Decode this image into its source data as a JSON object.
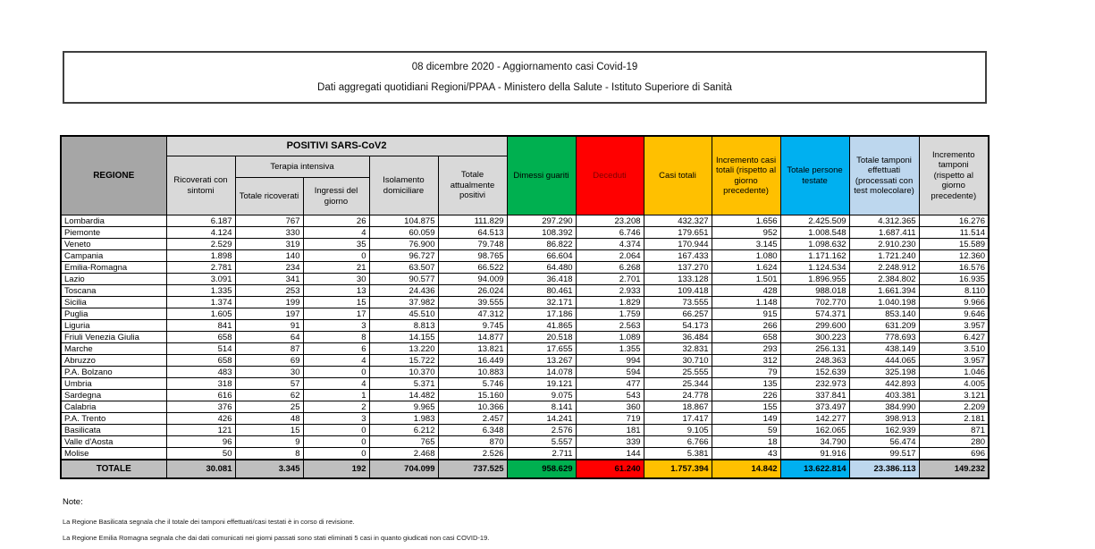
{
  "page": {
    "title_line1": "08 dicembre 2020 - Aggiornamento casi Covid-19",
    "title_line2": "Dati aggregati quotidiani Regioni/PPAA - Ministero della Salute - Istituto Superiore di Sanità"
  },
  "colors": {
    "dimessi_green": "#00b050",
    "deceduti_red": "#ff0000",
    "deceduti_text": "#7f0000",
    "casi_yellow": "#ffc000",
    "testate_cyan": "#00b0f0",
    "tamponi_light_blue": "#bdd7ee",
    "header_light_gray": "#d9d9d9",
    "regione_gray": "#a6a6a6",
    "totale_row_gray": "#bfbfbf"
  },
  "table": {
    "headers": {
      "regione": "REGIONE",
      "positivi_group": "POSITIVI SARS-CoV2",
      "terapia_group": "Terapia intensiva",
      "ricoverati": "Ricoverati con sintomi",
      "totale_ricoverati": "Totale ricoverati",
      "ingressi": "Ingressi del giorno",
      "isolamento": "Isolamento domiciliare",
      "attualmente_positivi": "Totale attualmente positivi",
      "dimessi": "Dimessi guariti",
      "deceduti": "Deceduti",
      "casi_totali": "Casi totali",
      "incremento_casi": "Incremento casi totali (rispetto al giorno precedente)",
      "persone_testate": "Totale persone testate",
      "tamponi": "Totale tamponi effettuati (processati con test molecolare)",
      "incremento_tamponi": "Incremento tamponi (rispetto al giorno precedente)"
    },
    "rows": [
      {
        "region": "Lombardia",
        "values": [
          "6.187",
          "767",
          "26",
          "104.875",
          "111.829",
          "297.290",
          "23.208",
          "432.327",
          "1.656",
          "2.425.509",
          "4.312.365",
          "16.276"
        ]
      },
      {
        "region": "Piemonte",
        "values": [
          "4.124",
          "330",
          "4",
          "60.059",
          "64.513",
          "108.392",
          "6.746",
          "179.651",
          "952",
          "1.008.548",
          "1.687.411",
          "11.514"
        ]
      },
      {
        "region": "Veneto",
        "values": [
          "2.529",
          "319",
          "35",
          "76.900",
          "79.748",
          "86.822",
          "4.374",
          "170.944",
          "3.145",
          "1.098.632",
          "2.910.230",
          "15.589"
        ]
      },
      {
        "region": "Campania",
        "values": [
          "1.898",
          "140",
          "0",
          "96.727",
          "98.765",
          "66.604",
          "2.064",
          "167.433",
          "1.080",
          "1.171.162",
          "1.721.240",
          "12.360"
        ]
      },
      {
        "region": "Emilia-Romagna",
        "values": [
          "2.781",
          "234",
          "21",
          "63.507",
          "66.522",
          "64.480",
          "6.268",
          "137.270",
          "1.624",
          "1.124.534",
          "2.248.912",
          "16.576"
        ]
      },
      {
        "region": "Lazio",
        "values": [
          "3.091",
          "341",
          "30",
          "90.577",
          "94.009",
          "36.418",
          "2.701",
          "133.128",
          "1.501",
          "1.896.955",
          "2.384.802",
          "16.935"
        ]
      },
      {
        "region": "Toscana",
        "values": [
          "1.335",
          "253",
          "13",
          "24.436",
          "26.024",
          "80.461",
          "2.933",
          "109.418",
          "428",
          "988.018",
          "1.661.394",
          "8.110"
        ]
      },
      {
        "region": "Sicilia",
        "values": [
          "1.374",
          "199",
          "15",
          "37.982",
          "39.555",
          "32.171",
          "1.829",
          "73.555",
          "1.148",
          "702.770",
          "1.040.198",
          "9.966"
        ]
      },
      {
        "region": "Puglia",
        "values": [
          "1.605",
          "197",
          "17",
          "45.510",
          "47.312",
          "17.186",
          "1.759",
          "66.257",
          "915",
          "574.371",
          "853.140",
          "9.646"
        ]
      },
      {
        "region": "Liguria",
        "values": [
          "841",
          "91",
          "3",
          "8.813",
          "9.745",
          "41.865",
          "2.563",
          "54.173",
          "266",
          "299.600",
          "631.209",
          "3.957"
        ]
      },
      {
        "region": "Friuli Venezia Giulia",
        "values": [
          "658",
          "64",
          "8",
          "14.155",
          "14.877",
          "20.518",
          "1.089",
          "36.484",
          "658",
          "300.223",
          "778.693",
          "6.427"
        ]
      },
      {
        "region": "Marche",
        "values": [
          "514",
          "87",
          "6",
          "13.220",
          "13.821",
          "17.655",
          "1.355",
          "32.831",
          "293",
          "256.131",
          "438.149",
          "3.510"
        ]
      },
      {
        "region": "Abruzzo",
        "values": [
          "658",
          "69",
          "4",
          "15.722",
          "16.449",
          "13.267",
          "994",
          "30.710",
          "312",
          "248.363",
          "444.065",
          "3.957"
        ]
      },
      {
        "region": "P.A. Bolzano",
        "values": [
          "483",
          "30",
          "0",
          "10.370",
          "10.883",
          "14.078",
          "594",
          "25.555",
          "79",
          "152.639",
          "325.198",
          "1.046"
        ]
      },
      {
        "region": "Umbria",
        "values": [
          "318",
          "57",
          "4",
          "5.371",
          "5.746",
          "19.121",
          "477",
          "25.344",
          "135",
          "232.973",
          "442.893",
          "4.005"
        ]
      },
      {
        "region": "Sardegna",
        "values": [
          "616",
          "62",
          "1",
          "14.482",
          "15.160",
          "9.075",
          "543",
          "24.778",
          "226",
          "337.841",
          "403.381",
          "3.121"
        ]
      },
      {
        "region": "Calabria",
        "values": [
          "376",
          "25",
          "2",
          "9.965",
          "10.366",
          "8.141",
          "360",
          "18.867",
          "155",
          "373.497",
          "384.990",
          "2.209"
        ]
      },
      {
        "region": "P.A. Trento",
        "values": [
          "426",
          "48",
          "3",
          "1.983",
          "2.457",
          "14.241",
          "719",
          "17.417",
          "149",
          "142.277",
          "398.913",
          "2.181"
        ]
      },
      {
        "region": "Basilicata",
        "values": [
          "121",
          "15",
          "0",
          "6.212",
          "6.348",
          "2.576",
          "181",
          "9.105",
          "59",
          "162.065",
          "162.939",
          "871"
        ]
      },
      {
        "region": "Valle d'Aosta",
        "values": [
          "96",
          "9",
          "0",
          "765",
          "870",
          "5.557",
          "339",
          "6.766",
          "18",
          "34.790",
          "56.474",
          "280"
        ]
      },
      {
        "region": "Molise",
        "values": [
          "50",
          "8",
          "0",
          "2.468",
          "2.526",
          "2.711",
          "144",
          "5.381",
          "43",
          "91.916",
          "99.517",
          "696"
        ]
      }
    ],
    "total": {
      "label": "TOTALE",
      "values": [
        "30.081",
        "3.345",
        "192",
        "704.099",
        "737.525",
        "958.629",
        "61.240",
        "1.757.394",
        "14.842",
        "13.622.814",
        "23.386.113",
        "149.232"
      ]
    }
  },
  "notes": {
    "heading": "Note:",
    "items": [
      "La Regione Basilicata segnala che il totale dei tamponi effettuati/casi testati è in corso di revisione.",
      "La Regione Emilia Romagna segnala che dai dati comunicati nei giorni passati sono stati eliminati 5 casi in quanto giudicati non casi COVID-19."
    ]
  }
}
